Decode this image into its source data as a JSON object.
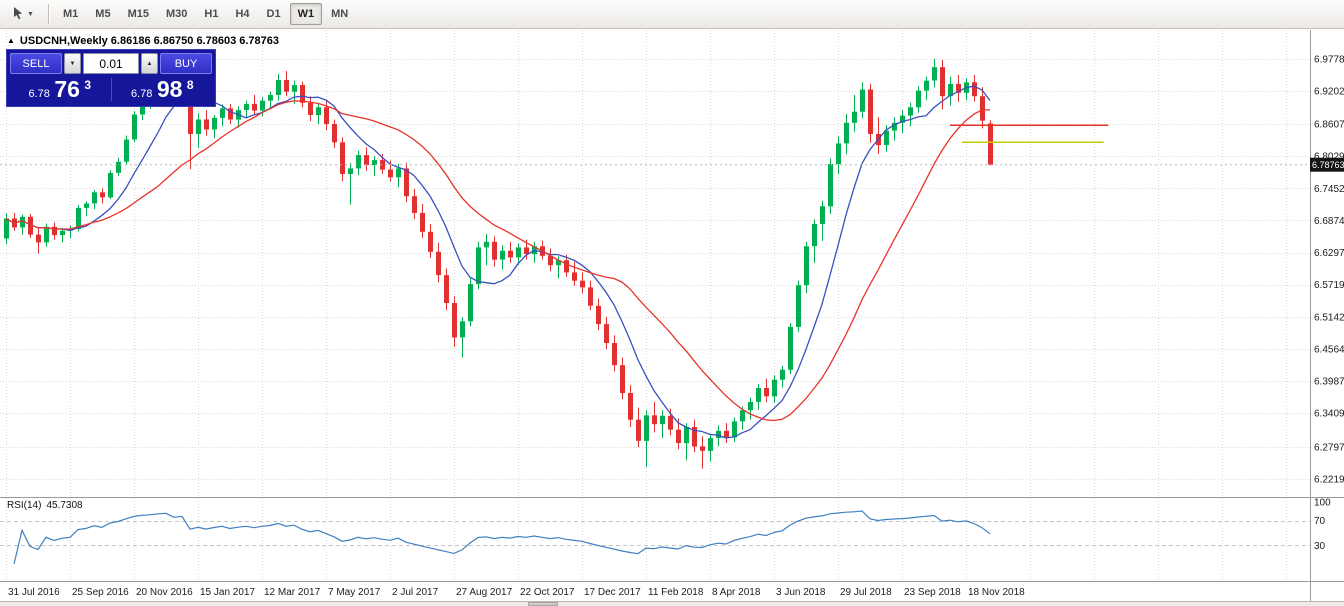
{
  "toolbar": {
    "cursor_tool": "crosshair-cursor",
    "timeframes": [
      "M1",
      "M5",
      "M15",
      "M30",
      "H1",
      "H4",
      "D1",
      "W1",
      "MN"
    ],
    "selected": "W1"
  },
  "chart": {
    "title": "USDCNH,Weekly 6.86186 6.86750 6.78603 6.78763",
    "ohlc": {
      "open": "6.86186",
      "high": "6.86750",
      "low": "6.78603",
      "close": "6.78763"
    }
  },
  "trade_panel": {
    "sell_label": "SELL",
    "buy_label": "BUY",
    "lot_size": "0.01",
    "sell_price": {
      "prefix": "6.78",
      "big": "76",
      "sup": "3"
    },
    "buy_price": {
      "prefix": "6.78",
      "big": "98",
      "sup": "8"
    }
  },
  "rsi_panel": {
    "label": "RSI(14)",
    "value": "45.7308"
  },
  "chart_data": {
    "type": "candlestick",
    "symbol": "USDCNH",
    "timeframe": "Weekly",
    "last_price": 6.78763,
    "current_price_label": "6.78763",
    "price_range": {
      "top": 7.03,
      "bottom": 6.19
    },
    "price_axis_labels": [
      "6.97789",
      "6.92020",
      "6.86070",
      "6.80295",
      "6.74520",
      "6.68745",
      "6.62970",
      "6.57195",
      "6.51420",
      "6.45645",
      "6.39870",
      "6.34095",
      "6.27970",
      "6.22195"
    ],
    "date_labels": [
      "31 Jul 2016",
      "25 Sep 2016",
      "20 Nov 2016",
      "15 Jan 2017",
      "12 Mar 2017",
      "7 May 2017",
      "2 Jul 2017",
      "27 Aug 2017",
      "22 Oct 2017",
      "17 Dec 2017",
      "11 Feb 2018",
      "8 Apr 2018",
      "3 Jun 2018",
      "29 Jul 2018",
      "23 Sep 2018",
      "18 Nov 2018"
    ],
    "bars_per_label": 8,
    "colors": {
      "up": "#00b050",
      "down": "#e23030",
      "grid": "#d9d9d9",
      "badge_bg": "#141414",
      "rsi": "#4080c0"
    },
    "moving_averages": [
      {
        "name": "fast",
        "period": 8,
        "color": "#3a50c0"
      },
      {
        "name": "slow",
        "period": 20,
        "color": "#e8332a"
      }
    ],
    "hlines": [
      {
        "name": "resistance-line-red",
        "price": 6.8585,
        "color": "#e8332a",
        "x1_week": 118,
        "x2_week": 137.8
      },
      {
        "name": "support-line-yellow",
        "price": 6.828,
        "color": "#c9c900",
        "x1_week": 119.5,
        "x2_week": 137.2
      }
    ],
    "rsi": {
      "period": 14,
      "current": 45.7308,
      "levels": [
        70,
        30
      ],
      "scale_labels": [
        "100",
        "70",
        "30"
      ]
    },
    "candles": [
      [
        6.655,
        6.7,
        6.645,
        6.691
      ],
      [
        6.691,
        6.701,
        6.669,
        6.675
      ],
      [
        6.675,
        6.698,
        6.662,
        6.694
      ],
      [
        6.694,
        6.699,
        6.656,
        6.662
      ],
      [
        6.662,
        6.675,
        6.628,
        6.648
      ],
      [
        6.648,
        6.682,
        6.64,
        6.676
      ],
      [
        6.676,
        6.684,
        6.653,
        6.661
      ],
      [
        6.661,
        6.674,
        6.648,
        6.669
      ],
      [
        6.669,
        6.678,
        6.655,
        6.672
      ],
      [
        6.672,
        6.715,
        6.668,
        6.71
      ],
      [
        6.71,
        6.722,
        6.695,
        6.718
      ],
      [
        6.718,
        6.742,
        6.708,
        6.738
      ],
      [
        6.738,
        6.745,
        6.718,
        6.729
      ],
      [
        6.729,
        6.778,
        6.726,
        6.773
      ],
      [
        6.773,
        6.8,
        6.768,
        6.793
      ],
      [
        6.793,
        6.84,
        6.788,
        6.833
      ],
      [
        6.833,
        6.884,
        6.828,
        6.878
      ],
      [
        6.878,
        6.91,
        6.868,
        6.903
      ],
      [
        6.903,
        6.924,
        6.888,
        6.916
      ],
      [
        6.916,
        6.947,
        6.905,
        6.94
      ],
      [
        6.94,
        6.963,
        6.925,
        6.952
      ],
      [
        6.952,
        6.959,
        6.918,
        6.928
      ],
      [
        6.928,
        6.952,
        6.91,
        6.945
      ],
      [
        6.945,
        6.949,
        6.78,
        6.843
      ],
      [
        6.843,
        6.88,
        6.818,
        6.869
      ],
      [
        6.869,
        6.886,
        6.84,
        6.851
      ],
      [
        6.851,
        6.877,
        6.835,
        6.872
      ],
      [
        6.872,
        6.896,
        6.857,
        6.889
      ],
      [
        6.889,
        6.897,
        6.861,
        6.869
      ],
      [
        6.869,
        6.893,
        6.854,
        6.886
      ],
      [
        6.886,
        6.903,
        6.871,
        6.897
      ],
      [
        6.897,
        6.913,
        6.877,
        6.885
      ],
      [
        6.885,
        6.909,
        6.875,
        6.903
      ],
      [
        6.903,
        6.919,
        6.889,
        6.913
      ],
      [
        6.913,
        6.951,
        6.903,
        6.94
      ],
      [
        6.94,
        6.956,
        6.911,
        6.919
      ],
      [
        6.919,
        6.939,
        6.897,
        6.931
      ],
      [
        6.931,
        6.937,
        6.891,
        6.899
      ],
      [
        6.899,
        6.911,
        6.866,
        6.877
      ],
      [
        6.877,
        6.899,
        6.861,
        6.891
      ],
      [
        6.891,
        6.903,
        6.85,
        6.861
      ],
      [
        6.861,
        6.869,
        6.818,
        6.828
      ],
      [
        6.828,
        6.837,
        6.758,
        6.771
      ],
      [
        6.771,
        6.791,
        6.716,
        6.781
      ],
      [
        6.781,
        6.813,
        6.769,
        6.805
      ],
      [
        6.805,
        6.819,
        6.777,
        6.787
      ],
      [
        6.787,
        6.803,
        6.767,
        6.796
      ],
      [
        6.796,
        6.807,
        6.771,
        6.779
      ],
      [
        6.779,
        6.795,
        6.757,
        6.765
      ],
      [
        6.765,
        6.789,
        6.747,
        6.781
      ],
      [
        6.781,
        6.791,
        6.72,
        6.731
      ],
      [
        6.731,
        6.744,
        6.69,
        6.701
      ],
      [
        6.701,
        6.717,
        6.656,
        6.667
      ],
      [
        6.667,
        6.681,
        6.62,
        6.631
      ],
      [
        6.631,
        6.647,
        6.576,
        6.589
      ],
      [
        6.589,
        6.601,
        6.526,
        6.539
      ],
      [
        6.539,
        6.551,
        6.46,
        6.477
      ],
      [
        6.477,
        6.513,
        6.441,
        6.506
      ],
      [
        6.506,
        6.584,
        6.497,
        6.573
      ],
      [
        6.573,
        6.649,
        6.564,
        6.639
      ],
      [
        6.639,
        6.663,
        6.607,
        6.649
      ],
      [
        6.649,
        6.659,
        6.604,
        6.617
      ],
      [
        6.617,
        6.643,
        6.599,
        6.633
      ],
      [
        6.633,
        6.649,
        6.611,
        6.621
      ],
      [
        6.621,
        6.646,
        6.607,
        6.639
      ],
      [
        6.639,
        6.653,
        6.617,
        6.627
      ],
      [
        6.627,
        6.649,
        6.611,
        6.641
      ],
      [
        6.641,
        6.651,
        6.617,
        6.624
      ],
      [
        6.624,
        6.637,
        6.596,
        6.607
      ],
      [
        6.607,
        6.623,
        6.583,
        6.616
      ],
      [
        6.616,
        6.626,
        6.586,
        6.594
      ],
      [
        6.594,
        6.613,
        6.57,
        6.579
      ],
      [
        6.579,
        6.594,
        6.556,
        6.567
      ],
      [
        6.567,
        6.579,
        6.526,
        6.534
      ],
      [
        6.534,
        6.547,
        6.49,
        6.501
      ],
      [
        6.501,
        6.514,
        6.456,
        6.467
      ],
      [
        6.467,
        6.481,
        6.416,
        6.427
      ],
      [
        6.427,
        6.441,
        6.366,
        6.377
      ],
      [
        6.377,
        6.391,
        6.316,
        6.329
      ],
      [
        6.329,
        6.351,
        6.28,
        6.291
      ],
      [
        6.291,
        6.346,
        6.244,
        6.337
      ],
      [
        6.337,
        6.361,
        6.306,
        6.321
      ],
      [
        6.321,
        6.346,
        6.296,
        6.336
      ],
      [
        6.336,
        6.349,
        6.301,
        6.311
      ],
      [
        6.311,
        6.331,
        6.276,
        6.287
      ],
      [
        6.287,
        6.323,
        6.256,
        6.316
      ],
      [
        6.316,
        6.329,
        6.271,
        6.281
      ],
      [
        6.281,
        6.299,
        6.241,
        6.273
      ],
      [
        6.273,
        6.303,
        6.254,
        6.296
      ],
      [
        6.296,
        6.319,
        6.281,
        6.309
      ],
      [
        6.309,
        6.323,
        6.287,
        6.297
      ],
      [
        6.297,
        6.333,
        6.289,
        6.326
      ],
      [
        6.326,
        6.353,
        6.311,
        6.346
      ],
      [
        6.346,
        6.369,
        6.329,
        6.361
      ],
      [
        6.361,
        6.393,
        6.347,
        6.386
      ],
      [
        6.386,
        6.403,
        6.361,
        6.371
      ],
      [
        6.371,
        6.409,
        6.359,
        6.401
      ],
      [
        6.401,
        6.426,
        6.387,
        6.419
      ],
      [
        6.419,
        6.503,
        6.411,
        6.496
      ],
      [
        6.496,
        6.579,
        6.487,
        6.571
      ],
      [
        6.571,
        6.649,
        6.557,
        6.641
      ],
      [
        6.641,
        6.689,
        6.611,
        6.681
      ],
      [
        6.681,
        6.723,
        6.651,
        6.713
      ],
      [
        6.713,
        6.799,
        6.699,
        6.789
      ],
      [
        6.789,
        6.839,
        6.771,
        6.826
      ],
      [
        6.826,
        6.879,
        6.807,
        6.863
      ],
      [
        6.863,
        6.913,
        6.847,
        6.883
      ],
      [
        6.883,
        6.936,
        6.871,
        6.923
      ],
      [
        6.923,
        6.933,
        6.827,
        6.843
      ],
      [
        6.843,
        6.873,
        6.807,
        6.823
      ],
      [
        6.823,
        6.859,
        6.811,
        6.849
      ],
      [
        6.849,
        6.873,
        6.831,
        6.863
      ],
      [
        6.863,
        6.886,
        6.844,
        6.876
      ],
      [
        6.876,
        6.899,
        6.857,
        6.891
      ],
      [
        6.891,
        6.929,
        6.881,
        6.921
      ],
      [
        6.921,
        6.946,
        6.904,
        6.939
      ],
      [
        6.939,
        6.978,
        6.927,
        6.963
      ],
      [
        6.963,
        6.976,
        6.887,
        6.911
      ],
      [
        6.911,
        6.946,
        6.894,
        6.933
      ],
      [
        6.933,
        6.949,
        6.901,
        6.917
      ],
      [
        6.917,
        6.943,
        6.904,
        6.936
      ],
      [
        6.936,
        6.949,
        6.901,
        6.911
      ],
      [
        6.911,
        6.927,
        6.853,
        6.867
      ],
      [
        6.86186,
        6.8675,
        6.78603,
        6.78763
      ]
    ]
  }
}
